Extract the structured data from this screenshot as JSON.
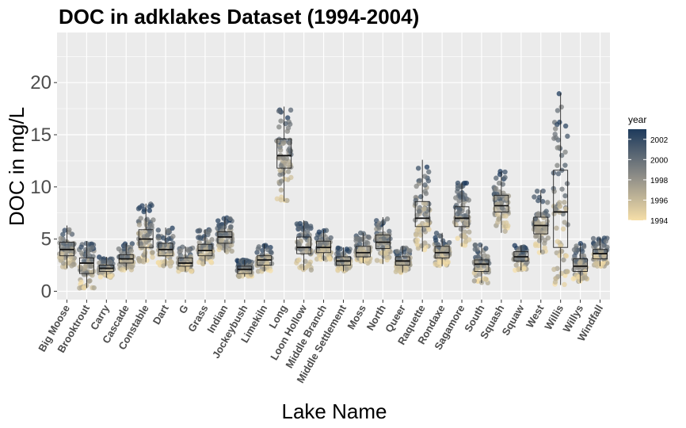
{
  "chart_data": {
    "type": "box",
    "title": "DOC in adklakes Dataset (1994-2004)",
    "xlabel": "Lake Name",
    "ylabel": "DOC in mg/L",
    "ylim": [
      -0.8,
      24.8
    ],
    "yticks": [
      0,
      5,
      10,
      15,
      20
    ],
    "grid": true,
    "legend": {
      "title": "year",
      "position": "right",
      "ticks": [
        1994,
        1996,
        1998,
        2000,
        2002
      ],
      "range": [
        1994,
        2003
      ],
      "low_color": "#f6dfa8",
      "high_color": "#1d3a5c"
    },
    "categories": [
      "Big Moose",
      "Brooktrout",
      "Carry",
      "Cascade",
      "Constable",
      "Dart",
      "G",
      "Grass",
      "Indian",
      "Jockeybush",
      "Limekiln",
      "Long",
      "Loon Hollow",
      "Middle Branch",
      "Middle Settlement",
      "Moss",
      "North",
      "Queer",
      "Raquette",
      "Rondaxe",
      "Sagamore",
      "South",
      "Squash",
      "Squaw",
      "West",
      "Willis",
      "Willys",
      "Windfall"
    ],
    "boxes": [
      {
        "min": 2.2,
        "q1": 3.4,
        "median": 4.0,
        "q3": 4.7,
        "max": 6.3
      },
      {
        "min": 0.3,
        "q1": 1.7,
        "median": 2.7,
        "q3": 3.2,
        "max": 4.8
      },
      {
        "min": 1.3,
        "q1": 1.9,
        "median": 2.2,
        "q3": 2.5,
        "max": 3.3
      },
      {
        "min": 2.0,
        "q1": 2.7,
        "median": 3.1,
        "q3": 3.5,
        "max": 4.6
      },
      {
        "min": 2.8,
        "q1": 4.2,
        "median": 5.0,
        "q3": 5.9,
        "max": 8.4
      },
      {
        "min": 2.4,
        "q1": 3.4,
        "median": 4.0,
        "q3": 4.6,
        "max": 6.1
      },
      {
        "min": 1.9,
        "q1": 2.4,
        "median": 2.7,
        "q3": 3.2,
        "max": 4.3
      },
      {
        "min": 2.6,
        "q1": 3.4,
        "median": 3.9,
        "q3": 4.5,
        "max": 5.9
      },
      {
        "min": 3.7,
        "q1": 4.6,
        "median": 5.2,
        "q3": 5.7,
        "max": 7.1
      },
      {
        "min": 1.4,
        "q1": 1.7,
        "median": 2.1,
        "q3": 2.4,
        "max": 3.0
      },
      {
        "min": 1.9,
        "q1": 2.5,
        "median": 3.0,
        "q3": 3.4,
        "max": 4.5
      },
      {
        "min": 8.6,
        "q1": 11.8,
        "median": 13.0,
        "q3": 14.6,
        "max": 17.7
      },
      {
        "min": 2.0,
        "q1": 3.6,
        "median": 4.2,
        "q3": 5.2,
        "max": 6.8
      },
      {
        "min": 2.9,
        "q1": 3.7,
        "median": 4.2,
        "q3": 4.8,
        "max": 5.9
      },
      {
        "min": 1.9,
        "q1": 2.5,
        "median": 2.9,
        "q3": 3.3,
        "max": 4.2
      },
      {
        "min": 2.7,
        "q1": 3.3,
        "median": 3.7,
        "q3": 4.3,
        "max": 5.6
      },
      {
        "min": 2.6,
        "q1": 4.1,
        "median": 4.7,
        "q3": 5.4,
        "max": 7.1
      },
      {
        "min": 1.8,
        "q1": 2.5,
        "median": 2.9,
        "q3": 3.3,
        "max": 4.3
      },
      {
        "min": 3.8,
        "q1": 6.2,
        "median": 7.0,
        "q3": 8.6,
        "max": 12.6
      },
      {
        "min": 2.4,
        "q1": 3.2,
        "median": 3.7,
        "q3": 4.3,
        "max": 5.6
      },
      {
        "min": 4.3,
        "q1": 6.2,
        "median": 7.0,
        "q3": 8.1,
        "max": 10.4
      },
      {
        "min": 0.8,
        "q1": 1.9,
        "median": 2.6,
        "q3": 3.0,
        "max": 4.5
      },
      {
        "min": 5.6,
        "q1": 7.6,
        "median": 8.2,
        "q3": 9.2,
        "max": 11.5
      },
      {
        "min": 2.0,
        "q1": 2.9,
        "median": 3.3,
        "q3": 3.8,
        "max": 4.4
      },
      {
        "min": 3.7,
        "q1": 5.5,
        "median": 6.3,
        "q3": 7.1,
        "max": 9.7
      },
      {
        "min": 0.6,
        "q1": 4.2,
        "median": 7.6,
        "q3": 11.6,
        "max": 19.0
      },
      {
        "min": 0.8,
        "q1": 1.9,
        "median": 2.4,
        "q3": 3.1,
        "max": 4.6
      },
      {
        "min": 2.4,
        "q1": 3.1,
        "median": 3.6,
        "q3": 4.0,
        "max": 5.1
      }
    ]
  }
}
